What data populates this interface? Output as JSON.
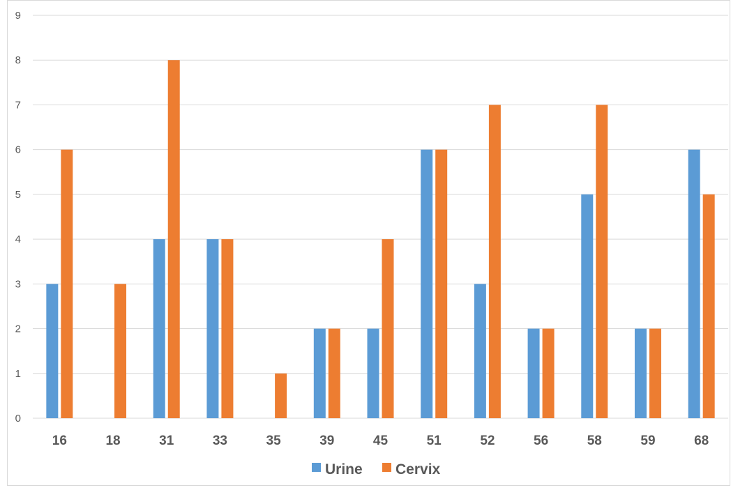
{
  "chart_data": {
    "type": "bar",
    "categories": [
      "16",
      "18",
      "31",
      "33",
      "35",
      "39",
      "45",
      "51",
      "52",
      "56",
      "58",
      "59",
      "68"
    ],
    "series": [
      {
        "name": "Urine",
        "values": [
          3,
          0,
          4,
          4,
          0,
          2,
          2,
          6,
          3,
          2,
          5,
          2,
          6
        ],
        "color": "#5b9bd5"
      },
      {
        "name": "Cervix",
        "values": [
          6,
          3,
          8,
          4,
          1,
          2,
          4,
          6,
          7,
          2,
          7,
          2,
          5
        ],
        "color": "#ed7d31"
      }
    ],
    "title": "",
    "xlabel": "",
    "ylabel": "",
    "ylim": [
      0,
      9
    ],
    "yticks": [
      "0",
      "1",
      "2",
      "3",
      "4",
      "5",
      "6",
      "7",
      "8",
      "9"
    ],
    "grid": true,
    "legend_position": "bottom-center",
    "colors": {
      "gridline": "#d9d9d9",
      "axis_text": "#595959",
      "frame": "#d9d9d9"
    }
  }
}
